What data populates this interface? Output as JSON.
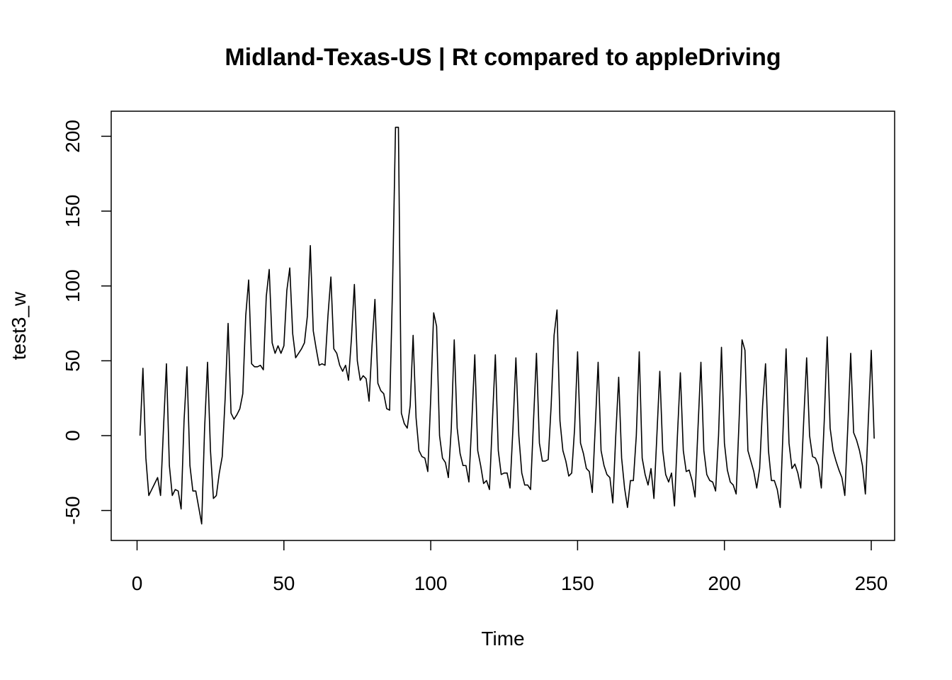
{
  "chart_data": {
    "type": "line",
    "title": "Midland-Texas-US | Rt compared to appleDriving",
    "xlabel": "Time",
    "ylabel": "test3_w",
    "xlim": [
      0,
      250
    ],
    "ylim": [
      -50,
      200
    ],
    "xticks": [
      0,
      50,
      100,
      150,
      200,
      250
    ],
    "yticks": [
      -50,
      0,
      50,
      100,
      150,
      200
    ],
    "grid": false,
    "series": [
      {
        "values": [
          0,
          45,
          -15,
          -40,
          -36,
          -32,
          -28,
          -40,
          5,
          48,
          -20,
          -40,
          -36,
          -37,
          -49,
          10,
          46,
          -20,
          -37,
          -37,
          -48,
          -59,
          5,
          49,
          -10,
          -42,
          -40,
          -25,
          -14,
          25,
          75,
          15,
          11,
          14,
          18,
          28,
          80,
          104,
          48,
          46,
          46,
          47,
          44,
          93,
          111,
          62,
          55,
          60,
          55,
          60,
          97,
          112,
          68,
          52,
          55,
          58,
          62,
          80,
          127,
          70,
          58,
          47,
          48,
          47,
          80,
          106,
          58,
          55,
          47,
          43,
          47,
          37,
          65,
          101,
          50,
          37,
          40,
          38,
          23,
          60,
          91,
          35,
          30,
          28,
          18,
          17,
          100,
          206,
          206,
          15,
          8,
          5,
          20,
          67,
          12,
          -10,
          -14,
          -15,
          -24,
          25,
          82,
          73,
          0,
          -15,
          -18,
          -28,
          5,
          64,
          5,
          -12,
          -20,
          -20,
          -31,
          10,
          54,
          -10,
          -20,
          -32,
          -30,
          -36,
          10,
          54,
          -10,
          -26,
          -25,
          -25,
          -35,
          5,
          52,
          0,
          -25,
          -33,
          -33,
          -36,
          10,
          55,
          -5,
          -17,
          -17,
          -16,
          20,
          67,
          84,
          10,
          -10,
          -17,
          -27,
          -25,
          5,
          56,
          -5,
          -12,
          -22,
          -24,
          -38,
          5,
          49,
          -10,
          -20,
          -26,
          -28,
          -45,
          0,
          39,
          -15,
          -35,
          -48,
          -30,
          -30,
          0,
          56,
          -15,
          -26,
          -33,
          -22,
          -42,
          0,
          43,
          -10,
          -26,
          -31,
          -25,
          -47,
          0,
          42,
          -10,
          -24,
          -23,
          -30,
          -41,
          5,
          49,
          -10,
          -26,
          -30,
          -31,
          -37,
          0,
          59,
          -5,
          -23,
          -31,
          -33,
          -39,
          10,
          64,
          57,
          -10,
          -17,
          -24,
          -35,
          -22,
          20,
          48,
          -10,
          -30,
          -30,
          -36,
          -48,
          5,
          58,
          -5,
          -22,
          -19,
          -25,
          -35,
          10,
          52,
          0,
          -14,
          -15,
          -20,
          -35,
          10,
          66,
          5,
          -10,
          -17,
          -23,
          -28,
          -40,
          5,
          55,
          2,
          -3,
          -10,
          -20,
          -39,
          10,
          57,
          -2
        ]
      }
    ]
  }
}
